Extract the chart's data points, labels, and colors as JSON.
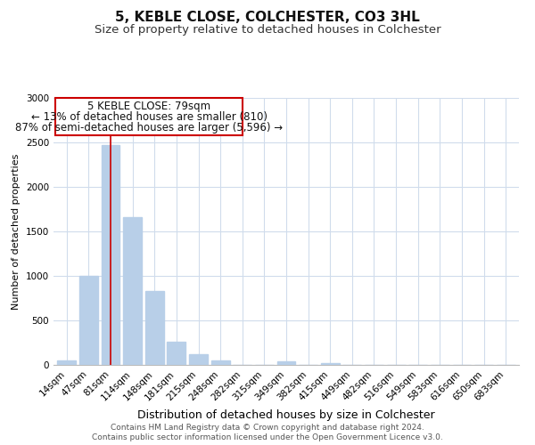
{
  "title": "5, KEBLE CLOSE, COLCHESTER, CO3 3HL",
  "subtitle": "Size of property relative to detached houses in Colchester",
  "xlabel": "Distribution of detached houses by size in Colchester",
  "ylabel": "Number of detached properties",
  "categories": [
    "14sqm",
    "47sqm",
    "81sqm",
    "114sqm",
    "148sqm",
    "181sqm",
    "215sqm",
    "248sqm",
    "282sqm",
    "315sqm",
    "349sqm",
    "382sqm",
    "415sqm",
    "449sqm",
    "482sqm",
    "516sqm",
    "549sqm",
    "583sqm",
    "616sqm",
    "650sqm",
    "683sqm"
  ],
  "values": [
    55,
    1000,
    2470,
    1660,
    830,
    265,
    125,
    50,
    5,
    0,
    40,
    0,
    20,
    0,
    0,
    0,
    0,
    0,
    0,
    0,
    0
  ],
  "bar_color": "#b8cfe8",
  "vline_x_index": 2,
  "vline_color": "#cc0000",
  "annotation_line1": "5 KEBLE CLOSE: 79sqm",
  "annotation_line2": "← 13% of detached houses are smaller (810)",
  "annotation_line3": "87% of semi-detached houses are larger (5,596) →",
  "box_edge_color": "#cc0000",
  "ylim": [
    0,
    3000
  ],
  "yticks": [
    0,
    500,
    1000,
    1500,
    2000,
    2500,
    3000
  ],
  "footer_line1": "Contains HM Land Registry data © Crown copyright and database right 2024.",
  "footer_line2": "Contains public sector information licensed under the Open Government Licence v3.0.",
  "title_fontsize": 11,
  "subtitle_fontsize": 9.5,
  "xlabel_fontsize": 9,
  "ylabel_fontsize": 8,
  "tick_fontsize": 7.5,
  "annotation_fontsize": 8.5,
  "footer_fontsize": 6.5,
  "background_color": "#ffffff",
  "grid_color": "#d0dcec"
}
